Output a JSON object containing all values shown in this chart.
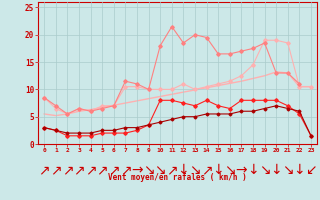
{
  "x": [
    0,
    1,
    2,
    3,
    4,
    5,
    6,
    7,
    8,
    9,
    10,
    11,
    12,
    13,
    14,
    15,
    16,
    17,
    18,
    19,
    20,
    21,
    22,
    23
  ],
  "line_light_pink_smooth": [
    5.5,
    5.2,
    5.5,
    6.0,
    6.3,
    6.7,
    7.1,
    7.5,
    7.9,
    8.3,
    8.7,
    9.1,
    9.5,
    9.9,
    10.3,
    10.7,
    11.1,
    11.5,
    12.0,
    12.5,
    13.2,
    13.0,
    10.5,
    10.5
  ],
  "line_light_pink_jagged": [
    8.5,
    6.5,
    5.5,
    6.5,
    6.0,
    7.0,
    7.0,
    10.5,
    10.5,
    10.0,
    10.0,
    10.0,
    11.0,
    10.0,
    10.5,
    11.0,
    11.5,
    12.5,
    14.5,
    19.0,
    19.0,
    18.5,
    10.5,
    10.5
  ],
  "line_pink_jagged": [
    8.5,
    7.0,
    5.5,
    6.5,
    6.0,
    6.5,
    7.0,
    11.5,
    11.0,
    10.0,
    18.0,
    21.5,
    18.5,
    20.0,
    19.5,
    16.5,
    16.5,
    17.0,
    17.5,
    18.5,
    13.0,
    13.0,
    11.0,
    null
  ],
  "line_red_jagged": [
    3.0,
    2.5,
    1.5,
    1.5,
    1.5,
    2.0,
    2.0,
    2.0,
    2.5,
    3.5,
    8.0,
    8.0,
    7.5,
    7.0,
    8.0,
    7.0,
    6.5,
    8.0,
    8.0,
    8.0,
    8.0,
    7.0,
    5.5,
    1.5
  ],
  "line_dark_red_smooth": [
    3.0,
    2.5,
    2.0,
    2.0,
    2.0,
    2.5,
    2.5,
    3.0,
    3.0,
    3.5,
    4.0,
    4.5,
    5.0,
    5.0,
    5.5,
    5.5,
    5.5,
    6.0,
    6.0,
    6.5,
    7.0,
    6.5,
    6.0,
    1.5
  ],
  "color_light_pink": "#FFB0B0",
  "color_pink": "#FF8080",
  "color_red": "#FF2020",
  "color_dark_red": "#AA0000",
  "bg_color": "#CCE8E8",
  "grid_color": "#AACCCC",
  "xlabel": "Vent moyen/en rafales ( km/h )",
  "ylim": [
    0,
    26
  ],
  "xlim": [
    -0.5,
    23.5
  ],
  "yticks": [
    0,
    5,
    10,
    15,
    20,
    25
  ],
  "arrows": [
    "↗",
    "↗",
    "↗",
    "↗",
    "↗",
    "↗",
    "↗",
    "↗",
    "→",
    "↘",
    "↘",
    "↗",
    "↓",
    "↘",
    "↗",
    "↓",
    "↘",
    "→",
    "↓",
    "↘",
    "↓",
    "↘",
    "↓",
    "↙"
  ]
}
